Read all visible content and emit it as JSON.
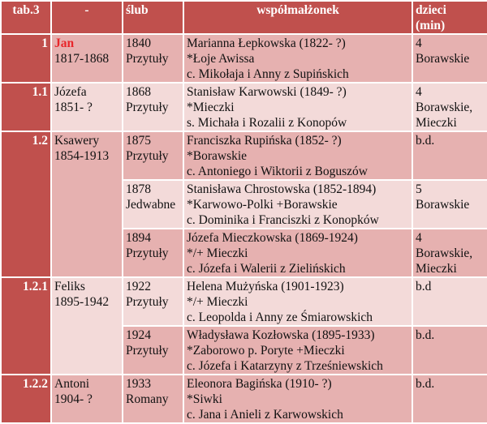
{
  "header": {
    "c1": "tab.3",
    "c2": "-",
    "c3": "ślub",
    "c4": "współmałżonek",
    "c5_l1": "dzieci",
    "c5_l2": "(min)"
  },
  "persons": [
    {
      "num": "1",
      "name": "Jan",
      "years": "1817-1868",
      "marriages": [
        {
          "year": "1840",
          "place": "Przytuły",
          "spouse": "Marianna Łepkowska (1822- ?)",
          "origin": "*Łoje Awissa",
          "parents": "c. Mikołaja i Anny z Supińskich",
          "children": [
            "4",
            "Borawskie"
          ]
        }
      ]
    },
    {
      "num": "1.1",
      "name": "Józefa",
      "years": "1851- ?",
      "marriages": [
        {
          "year": "1868",
          "place": "Przytuły",
          "spouse": "Stanisław Karwowski (1849- ?)",
          "origin": "*Mieczki",
          "parents": "s. Michała i Rozalii z Konopów",
          "children": [
            "4",
            "Borawskie,",
            "Mieczki"
          ]
        }
      ]
    },
    {
      "num": "1.2",
      "name": "Ksawery",
      "years": "1854-1913",
      "marriages": [
        {
          "year": "1875",
          "place": "Przytuły",
          "spouse": "Franciszka Rupińska (1852- ?)",
          "origin": "*Borawskie",
          "parents": "c. Antoniego i Wiktorii z Boguszów",
          "children": [
            "b.d."
          ]
        },
        {
          "year": "1878",
          "place": "Jedwabne",
          "spouse": "Stanisława Chrostowska (1852-1894)",
          "origin": "*Karwowo-Polki +Borawskie",
          "parents": "c. Dominika i Franciszki z Konopków",
          "children": [
            "5",
            "Borawskie"
          ]
        },
        {
          "year": "1894",
          "place": "Przytuły",
          "spouse": "Józefa Mieczkowska (1869-1924)",
          "origin": "*/+ Mieczki",
          "parents": "c. Józefa i Walerii z Zielińskich",
          "children": [
            "4",
            "Borawskie,",
            "Mieczki"
          ]
        }
      ]
    },
    {
      "num": "1.2.1",
      "name": "Feliks",
      "years": "1895-1942",
      "marriages": [
        {
          "year": "1922",
          "place": "Przytuły",
          "spouse": "Helena Mużyńska (1901-1923)",
          "origin": "*/+ Mieczki",
          "parents": "c. Leopolda i Anny ze Śmiarowskich",
          "children": [
            "b.d"
          ]
        },
        {
          "year": "1924",
          "place": "Przytuły",
          "spouse": "Władysława Kozłowska (1895-1933)",
          "origin": "*Zaborowo p. Poryte +Mieczki",
          "parents": "c. Józefa i Katarzyny z Trześniewskich",
          "children": [
            "b.d."
          ]
        }
      ]
    },
    {
      "num": "1.2.2",
      "name": "Antoni",
      "years": "1904- ?",
      "marriages": [
        {
          "year": "1933",
          "place": "Romany",
          "spouse": "Eleonora Bagińska (1910- ?)",
          "origin": "*Siwki",
          "parents": "c. Jana i Anieli z Karwowskich",
          "children": [
            "b.d."
          ]
        }
      ]
    }
  ]
}
